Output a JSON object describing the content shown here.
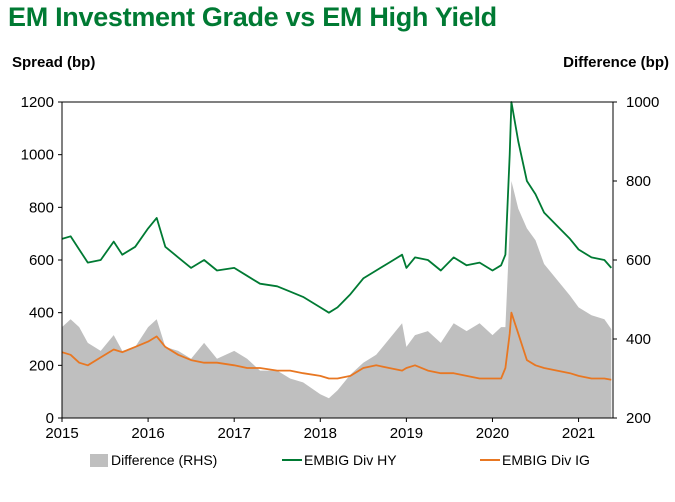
{
  "chart_data": {
    "type": "line",
    "title": "EM Investment Grade vs EM High Yield",
    "left_axis_label": "Spread (bp)",
    "right_axis_label": "Difference (bp)",
    "left_ylim": [
      0,
      1200
    ],
    "left_ticks": [
      "0",
      "200",
      "400",
      "600",
      "800",
      "1000",
      "1200"
    ],
    "right_ylim": [
      200,
      1000
    ],
    "right_ticks": [
      "200",
      "400",
      "600",
      "800",
      "1000"
    ],
    "xlim": [
      2015,
      2021.4
    ],
    "x_ticks": [
      "2015",
      "2016",
      "2017",
      "2018",
      "2019",
      "2020",
      "2021"
    ],
    "x": [
      2015.0,
      2015.1,
      2015.2,
      2015.3,
      2015.45,
      2015.6,
      2015.7,
      2015.85,
      2016.0,
      2016.1,
      2016.2,
      2016.35,
      2016.5,
      2016.65,
      2016.8,
      2017.0,
      2017.15,
      2017.3,
      2017.5,
      2017.65,
      2017.8,
      2018.0,
      2018.1,
      2018.2,
      2018.35,
      2018.5,
      2018.65,
      2018.8,
      2018.95,
      2019.0,
      2019.1,
      2019.25,
      2019.4,
      2019.55,
      2019.7,
      2019.85,
      2020.0,
      2020.1,
      2020.15,
      2020.2,
      2020.22,
      2020.3,
      2020.4,
      2020.5,
      2020.6,
      2020.75,
      2020.9,
      2021.0,
      2021.15,
      2021.3,
      2021.38
    ],
    "series": [
      {
        "name": "EMBIG Div HY",
        "axis": "left",
        "color": "#007A33",
        "values": [
          680,
          690,
          640,
          590,
          600,
          670,
          620,
          650,
          720,
          760,
          650,
          610,
          570,
          600,
          560,
          570,
          540,
          510,
          500,
          480,
          460,
          420,
          400,
          420,
          470,
          530,
          560,
          590,
          620,
          570,
          610,
          600,
          560,
          610,
          580,
          590,
          560,
          580,
          620,
          1000,
          1200,
          1050,
          900,
          850,
          780,
          730,
          680,
          640,
          610,
          600,
          570
        ]
      },
      {
        "name": "EMBIG Div IG",
        "axis": "left",
        "color": "#E87722",
        "values": [
          250,
          240,
          210,
          200,
          230,
          260,
          250,
          270,
          290,
          310,
          270,
          240,
          220,
          210,
          210,
          200,
          190,
          190,
          180,
          180,
          170,
          160,
          150,
          150,
          160,
          190,
          200,
          190,
          180,
          190,
          200,
          180,
          170,
          170,
          160,
          150,
          150,
          150,
          190,
          320,
          400,
          320,
          220,
          200,
          190,
          180,
          170,
          160,
          150,
          150,
          145
        ]
      },
      {
        "name": "Difference (RHS)",
        "axis": "right",
        "color": "#BFBFBF",
        "values": [
          430,
          450,
          430,
          390,
          370,
          410,
          370,
          380,
          430,
          450,
          380,
          370,
          350,
          390,
          350,
          370,
          350,
          320,
          320,
          300,
          290,
          260,
          250,
          270,
          310,
          340,
          360,
          400,
          440,
          380,
          410,
          420,
          390,
          440,
          420,
          440,
          410,
          430,
          430,
          680,
          800,
          730,
          680,
          650,
          590,
          550,
          510,
          480,
          460,
          450,
          425
        ]
      }
    ],
    "legend": [
      "Difference (RHS)",
      "EMBIG Div HY",
      "EMBIG Div IG"
    ]
  }
}
